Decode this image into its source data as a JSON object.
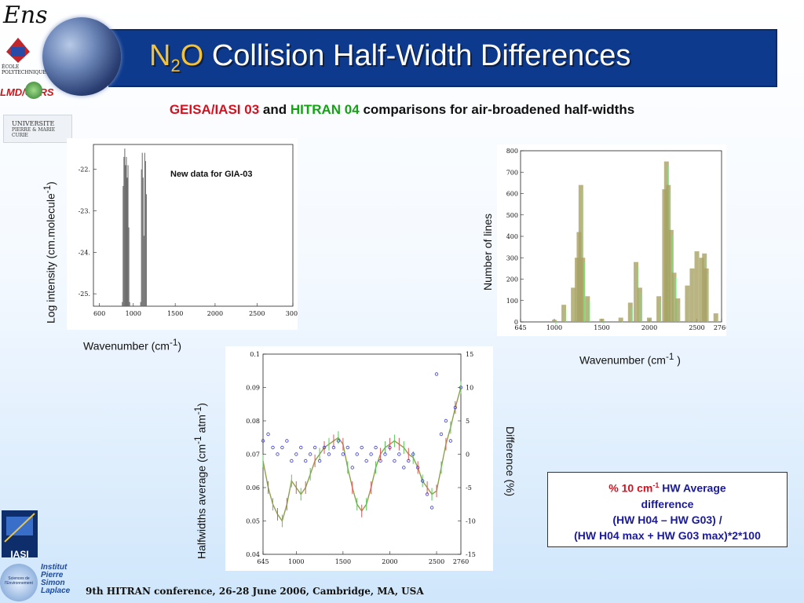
{
  "slide": {
    "title_main": "Collision Half-Width Differences",
    "title_prefix": "N",
    "title_sub": "2",
    "title_suffix": "O",
    "subtitle_red": "GEISA/IASI 03",
    "subtitle_and": "and",
    "subtitle_green": "HITRAN 04",
    "subtitle_rest": "comparisons for air-broadened half-widths",
    "footer": "9th HITRAN conference, 26-28 June 2006, Cambridge, MA, USA"
  },
  "logos": {
    "ens": "Ens",
    "polytechnique": "ÉCOLE POLYTECHNIQUE",
    "lmd": "LMD/CNRS",
    "upmc_line1": "UNIVERSITE",
    "upmc_line2": "PIERRE & MARIE CURIE",
    "iasi": "IASI",
    "ipsl_line1": "Institut",
    "ipsl_line2": "Pierre",
    "ipsl_line3": "Simon",
    "ipsl_line4": "Laplace",
    "ipsl_badge": "Sciences de l'Environnement"
  },
  "charts": {
    "left": {
      "ylabel_a": "Log intensity (cm.molecule",
      "ylabel_sup": "-1",
      "ylabel_b": ")",
      "xlabel_a": "Wavenumber (cm",
      "xlabel_sup": "-1",
      "xlabel_b": ")",
      "annotation": "New data for GIA-03"
    },
    "right": {
      "ylabel": "Number of lines",
      "xlabel_a": "Wavenumber (cm",
      "xlabel_sup": "-1",
      "xlabel_b": " )"
    },
    "bottom": {
      "ylabel_a": "Halfwidths average (cm",
      "ylabel_sup1": "-1",
      "ylabel_mid": " atm",
      "ylabel_sup2": "-1",
      "ylabel_b": ")",
      "y2label": "Difference (%)"
    }
  },
  "note": {
    "line1_a": "% 10 cm",
    "line1_sup": "-1",
    "line1_b": " HW Average",
    "line2": "difference",
    "line3": "(HW H04 – HW G03) /",
    "line4": "(HW H04 max + HW G03 max)*2*100"
  },
  "chart_data": [
    {
      "type": "bar",
      "x_ticks": [
        "600",
        "1000",
        "1500",
        "2000",
        "2500",
        "300("
      ],
      "y_ticks": [
        "-22.",
        "-23.",
        "-24.",
        "-25."
      ],
      "xlim": [
        550,
        3000
      ],
      "ylim": [
        -25.3,
        -21.4
      ],
      "x": [
        905,
        915,
        925,
        935,
        945,
        955,
        965,
        975,
        985,
        995,
        1130,
        1140,
        1150,
        1160,
        1170,
        1180,
        1190,
        1200
      ],
      "values": [
        -25.2,
        -22.4,
        -21.7,
        -21.5,
        -21.9,
        -21.7,
        -22.2,
        -21.9,
        -23.4,
        -25.2,
        -25.2,
        -22.0,
        -21.6,
        -22.2,
        -23.6,
        -21.6,
        -21.8,
        -22.6
      ]
    },
    {
      "type": "bar",
      "x_ticks": [
        "645",
        "1000",
        "1500",
        "2000",
        "2500",
        "2760"
      ],
      "y_ticks": [
        "800",
        "700",
        "600",
        "500",
        "400",
        "300",
        "200",
        "100",
        "0"
      ],
      "xlim": [
        645,
        2760
      ],
      "ylim": [
        0,
        800
      ],
      "x": [
        1000,
        1100,
        1200,
        1240,
        1260,
        1280,
        1300,
        1350,
        1500,
        1700,
        1800,
        1860,
        1900,
        2000,
        2100,
        2160,
        2180,
        2200,
        2230,
        2260,
        2300,
        2400,
        2450,
        2500,
        2550,
        2580,
        2600,
        2700
      ],
      "values": [
        10,
        80,
        160,
        300,
        420,
        640,
        300,
        120,
        15,
        20,
        90,
        280,
        160,
        20,
        120,
        620,
        750,
        640,
        430,
        230,
        110,
        170,
        250,
        330,
        300,
        320,
        250,
        40
      ]
    },
    {
      "type": "line",
      "x_ticks": [
        "645",
        "1000",
        "1500",
        "2000",
        "2500",
        "2760"
      ],
      "y_ticks": [
        "0.1",
        "0.09",
        "0.08",
        "0.07",
        "0.06",
        "0.05",
        "0.04"
      ],
      "y2_ticks": [
        "15",
        "10",
        "5",
        "0",
        "-5",
        "-10",
        "-15"
      ],
      "xlim": [
        645,
        2760
      ],
      "ylim": [
        0.04,
        0.1
      ],
      "y2lim": [
        -15,
        15
      ],
      "x": [
        645,
        700,
        750,
        800,
        850,
        900,
        950,
        1000,
        1050,
        1100,
        1150,
        1200,
        1250,
        1300,
        1350,
        1400,
        1450,
        1500,
        1550,
        1600,
        1650,
        1700,
        1750,
        1800,
        1850,
        1900,
        1950,
        2000,
        2050,
        2100,
        2150,
        2200,
        2250,
        2300,
        2350,
        2400,
        2450,
        2500,
        2550,
        2600,
        2650,
        2700,
        2760
      ],
      "series": [
        {
          "name": "",
          "values": [
            0.068,
            0.06,
            0.055,
            0.052,
            0.05,
            0.055,
            0.062,
            0.06,
            0.058,
            0.06,
            0.064,
            0.068,
            0.07,
            0.072,
            0.073,
            0.074,
            0.075,
            0.073,
            0.066,
            0.06,
            0.055,
            0.053,
            0.055,
            0.06,
            0.066,
            0.07,
            0.072,
            0.073,
            0.074,
            0.073,
            0.072,
            0.07,
            0.069,
            0.066,
            0.062,
            0.06,
            0.058,
            0.059,
            0.066,
            0.073,
            0.078,
            0.084,
            0.09
          ]
        },
        {
          "name": "",
          "values": [
            2,
            3,
            1,
            0,
            1,
            2,
            -1,
            0,
            1,
            -1,
            0,
            1,
            -1,
            1,
            0,
            1,
            2,
            0,
            1,
            -2,
            0,
            1,
            -1,
            0,
            1,
            -1,
            0,
            1,
            -1,
            0,
            -2,
            -1,
            0,
            -2,
            -4,
            -6,
            -8,
            12,
            3,
            5,
            2,
            7,
            10
          ]
        }
      ]
    }
  ]
}
